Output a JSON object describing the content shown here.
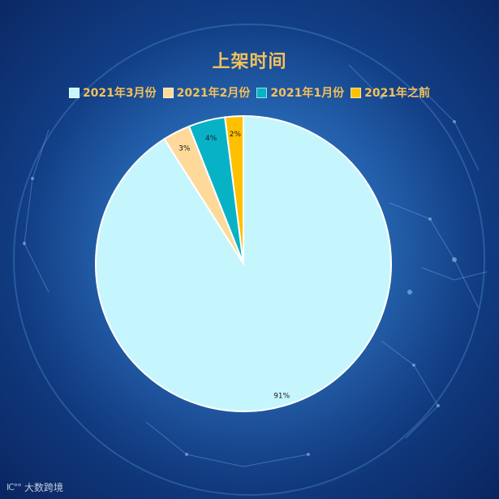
{
  "chart_data": {
    "type": "pie",
    "title": "上架时间",
    "categories": [
      "2021年3月份",
      "2021年2月份",
      "2021年1月份",
      "2021年之前"
    ],
    "values": [
      91,
      3,
      4,
      2
    ],
    "labels": [
      "91%",
      "3%",
      "4%",
      "2%"
    ],
    "colors": [
      "#c6f6fd",
      "#ffd99a",
      "#08b2c6",
      "#ffc000"
    ],
    "legend_position": "top"
  },
  "watermark": {
    "logo": "IC°°",
    "text": "大数跨境"
  }
}
